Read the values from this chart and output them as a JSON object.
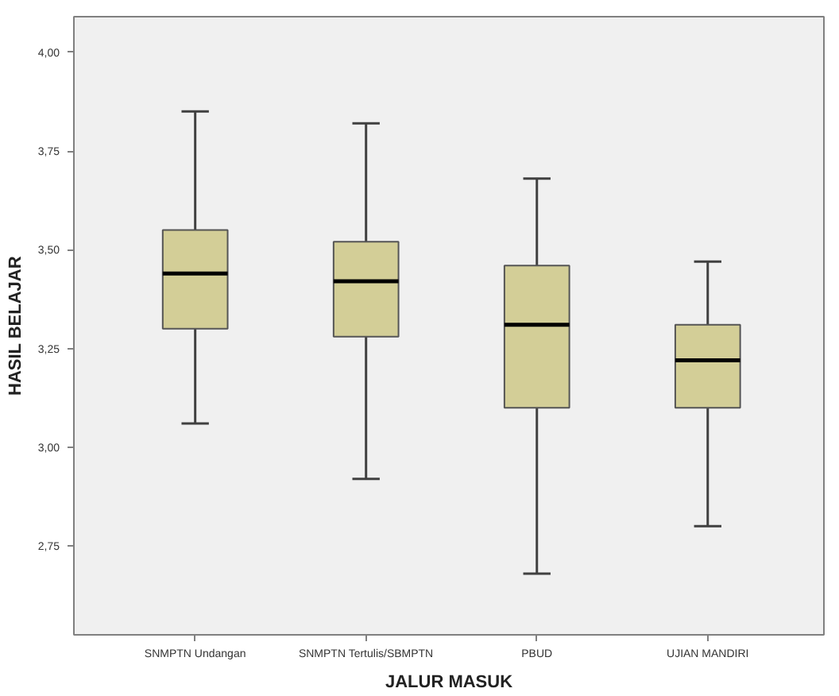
{
  "chart_data": {
    "type": "box",
    "xlabel": "JALUR MASUK",
    "ylabel": "HASIL BELAJAR",
    "categories": [
      "SNMPTN Undangan",
      "SNMPTN Tertulis/SBMPTN",
      "PBUD",
      "UJIAN MANDIRI"
    ],
    "color": "#d3ce97",
    "boxes": [
      {
        "low": 3.06,
        "q1": 3.3,
        "median": 3.44,
        "q3": 3.55,
        "high": 3.85
      },
      {
        "low": 2.92,
        "q1": 3.28,
        "median": 3.42,
        "q3": 3.52,
        "high": 3.82
      },
      {
        "low": 2.68,
        "q1": 3.1,
        "median": 3.31,
        "q3": 3.46,
        "high": 3.68
      },
      {
        "low": 2.8,
        "q1": 3.1,
        "median": 3.22,
        "q3": 3.31,
        "high": 3.47
      }
    ],
    "ylim": [
      2.525,
      4.09
    ],
    "yticks": [
      {
        "value": 2.75,
        "label": "2,75"
      },
      {
        "value": 3.0,
        "label": "3,00"
      },
      {
        "value": 3.25,
        "label": "3,25"
      },
      {
        "value": 3.5,
        "label": "3,50"
      },
      {
        "value": 3.75,
        "label": "3,75"
      },
      {
        "value": 4.0,
        "label": "4,00"
      }
    ],
    "grid": false
  }
}
